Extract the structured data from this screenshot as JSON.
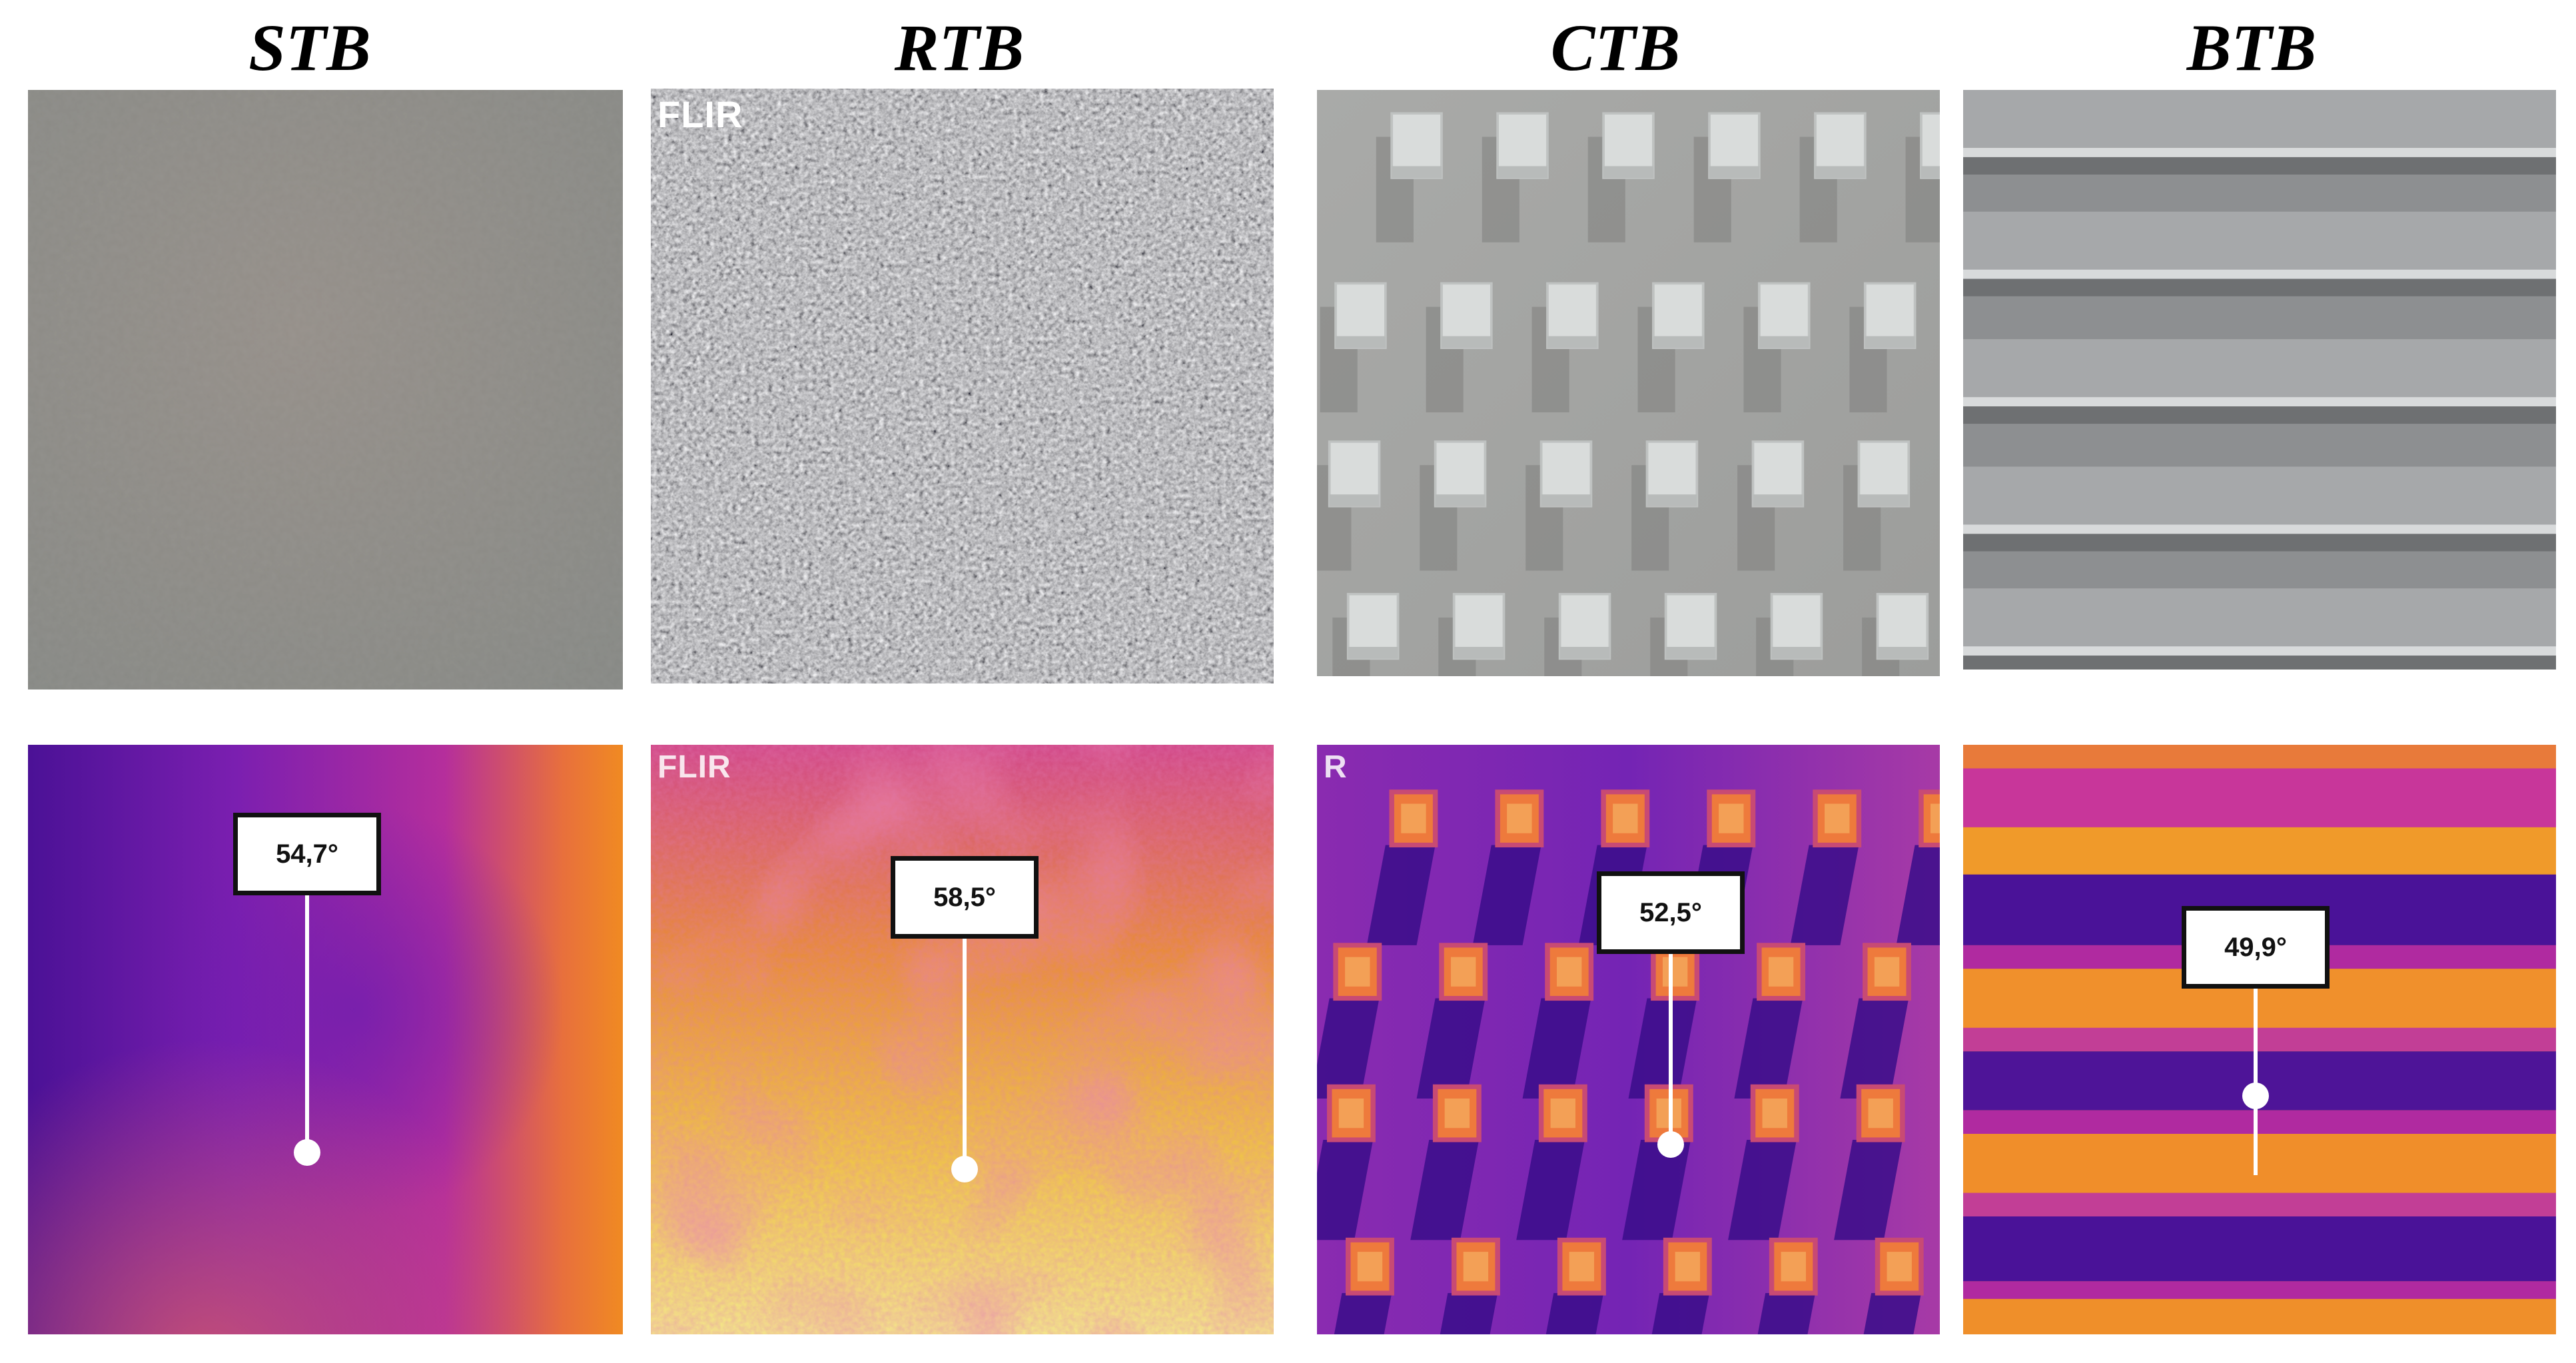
{
  "samples": [
    {
      "label": "STB",
      "temperature": "54,7°"
    },
    {
      "label": "RTB",
      "temperature": "58,5°",
      "watermark": "FLIR"
    },
    {
      "label": "CTB",
      "temperature": "52,5°"
    },
    {
      "label": "BTB",
      "temperature": "49,9°"
    }
  ],
  "thermal_watermarks": [
    "FLIR",
    "R"
  ],
  "colors": {
    "thermal_cold": "#4a0f9a",
    "thermal_mid": "#c02c9a",
    "thermal_warm": "#ef8a28",
    "thermal_hot": "#f5e06a",
    "photo_gray": "#8f8f8b"
  }
}
